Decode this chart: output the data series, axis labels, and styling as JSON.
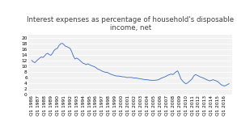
{
  "title": "Interest expenses as percentage of household's disposable\nincome, net",
  "title_fontsize": 6.2,
  "line_color": "#4472C4",
  "plot_bg_color": "#f2f2f2",
  "fig_bg_color": "#ffffff",
  "ylim": [
    0,
    21
  ],
  "yticks": [
    0,
    2,
    4,
    6,
    8,
    10,
    12,
    14,
    16,
    18,
    20
  ],
  "grid_color": "#ffffff",
  "tick_fontsize": 4.2,
  "xtick_labels": [
    "Q1 1986",
    "Q1 1987",
    "Q1 1988",
    "Q1 1989",
    "Q1 1990",
    "Q1 1991",
    "Q1 1992",
    "Q1 1993",
    "Q1 1994",
    "Q1 1995",
    "Q1 1996",
    "Q1 1997",
    "Q1 1998",
    "Q1 1999",
    "Q1 2000",
    "Q1 2001",
    "Q1 2002",
    "Q1 2003",
    "Q1 2004",
    "Q1 2005",
    "Q1 2006",
    "Q1 2007",
    "Q1 2008",
    "Q1 2009",
    "Q1 2010",
    "Q1 2011",
    "Q1 2012",
    "Q1 2013",
    "Q1 2014",
    "Q1 2015",
    "Q1 2016"
  ],
  "approx_values": [
    12.0,
    11.5,
    11.2,
    11.8,
    12.3,
    12.8,
    13.2,
    13.0,
    13.5,
    14.2,
    14.5,
    14.0,
    13.8,
    14.5,
    15.5,
    16.0,
    16.2,
    17.2,
    17.8,
    18.0,
    17.6,
    17.0,
    16.8,
    16.5,
    16.2,
    15.0,
    13.5,
    12.5,
    12.8,
    12.5,
    12.0,
    11.5,
    11.0,
    10.8,
    10.5,
    10.8,
    10.5,
    10.2,
    10.0,
    9.8,
    9.5,
    9.0,
    8.8,
    8.5,
    8.2,
    8.0,
    7.8,
    7.8,
    7.5,
    7.2,
    7.0,
    6.8,
    6.6,
    6.5,
    6.5,
    6.4,
    6.3,
    6.2,
    6.2,
    6.0,
    6.0,
    6.0,
    6.0,
    5.9,
    5.8,
    5.8,
    5.7,
    5.6,
    5.5,
    5.4,
    5.3,
    5.2,
    5.2,
    5.1,
    5.0,
    5.0,
    5.0,
    5.0,
    5.1,
    5.2,
    5.5,
    5.8,
    6.0,
    6.2,
    6.5,
    6.8,
    7.0,
    7.2,
    7.0,
    7.5,
    8.0,
    8.3,
    7.0,
    5.5,
    4.8,
    4.2,
    3.8,
    4.0,
    4.5,
    5.0,
    5.5,
    6.5,
    7.0,
    6.8,
    6.5,
    6.2,
    6.0,
    5.8,
    5.5,
    5.2,
    5.0,
    4.8,
    5.0,
    5.2,
    5.0,
    4.8,
    4.5,
    4.0,
    3.5,
    3.2,
    3.0,
    3.2,
    3.5,
    3.8
  ]
}
